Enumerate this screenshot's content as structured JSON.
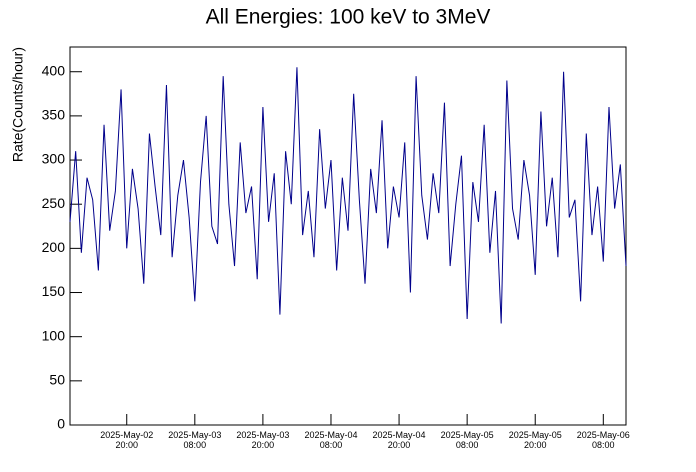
{
  "chart_data": {
    "type": "line",
    "title": "All Energies:  100 keV to 3MeV",
    "y_label": "Rate(Counts/hour)",
    "x": [
      "2025-05-02T10:00",
      "2025-05-02T11:00",
      "2025-05-02T12:00",
      "2025-05-02T13:00",
      "2025-05-02T14:00",
      "2025-05-02T15:00",
      "2025-05-02T16:00",
      "2025-05-02T17:00",
      "2025-05-02T18:00",
      "2025-05-02T19:00",
      "2025-05-02T20:00",
      "2025-05-02T21:00",
      "2025-05-02T22:00",
      "2025-05-02T23:00",
      "2025-05-03T00:00",
      "2025-05-03T01:00",
      "2025-05-03T02:00",
      "2025-05-03T03:00",
      "2025-05-03T04:00",
      "2025-05-03T05:00",
      "2025-05-03T06:00",
      "2025-05-03T07:00",
      "2025-05-03T08:00",
      "2025-05-03T09:00",
      "2025-05-03T10:00",
      "2025-05-03T11:00",
      "2025-05-03T12:00",
      "2025-05-03T13:00",
      "2025-05-03T14:00",
      "2025-05-03T15:00",
      "2025-05-03T16:00",
      "2025-05-03T17:00",
      "2025-05-03T18:00",
      "2025-05-03T19:00",
      "2025-05-03T20:00",
      "2025-05-03T21:00",
      "2025-05-03T22:00",
      "2025-05-03T23:00",
      "2025-05-04T00:00",
      "2025-05-04T01:00",
      "2025-05-04T02:00",
      "2025-05-04T03:00",
      "2025-05-04T04:00",
      "2025-05-04T05:00",
      "2025-05-04T06:00",
      "2025-05-04T07:00",
      "2025-05-04T08:00",
      "2025-05-04T09:00",
      "2025-05-04T10:00",
      "2025-05-04T11:00",
      "2025-05-04T12:00",
      "2025-05-04T13:00",
      "2025-05-04T14:00",
      "2025-05-04T15:00",
      "2025-05-04T16:00",
      "2025-05-04T17:00",
      "2025-05-04T18:00",
      "2025-05-04T19:00",
      "2025-05-04T20:00",
      "2025-05-04T21:00",
      "2025-05-04T22:00",
      "2025-05-04T23:00",
      "2025-05-05T00:00",
      "2025-05-05T01:00",
      "2025-05-05T02:00",
      "2025-05-05T03:00",
      "2025-05-05T04:00",
      "2025-05-05T05:00",
      "2025-05-05T06:00",
      "2025-05-05T07:00",
      "2025-05-05T08:00",
      "2025-05-05T09:00",
      "2025-05-05T10:00",
      "2025-05-05T11:00",
      "2025-05-05T12:00",
      "2025-05-05T13:00",
      "2025-05-05T14:00",
      "2025-05-05T15:00",
      "2025-05-05T16:00",
      "2025-05-05T17:00",
      "2025-05-05T18:00",
      "2025-05-05T19:00",
      "2025-05-05T20:00",
      "2025-05-05T21:00",
      "2025-05-05T22:00",
      "2025-05-05T23:00",
      "2025-05-06T00:00",
      "2025-05-06T01:00",
      "2025-05-06T02:00",
      "2025-05-06T03:00",
      "2025-05-06T04:00",
      "2025-05-06T05:00",
      "2025-05-06T06:00",
      "2025-05-06T07:00",
      "2025-05-06T08:00",
      "2025-05-06T09:00",
      "2025-05-06T10:00",
      "2025-05-06T11:00",
      "2025-05-06T12:00"
    ],
    "series": [
      {
        "color": "#00008b",
        "values": [
          230,
          310,
          195,
          280,
          255,
          175,
          340,
          220,
          265,
          380,
          200,
          290,
          245,
          160,
          330,
          270,
          215,
          385,
          190,
          260,
          300,
          235,
          140,
          275,
          350,
          225,
          205,
          395,
          250,
          180,
          320,
          240,
          270,
          165,
          360,
          230,
          285,
          125,
          310,
          250,
          405,
          215,
          265,
          190,
          335,
          245,
          300,
          175,
          280,
          220,
          375,
          255,
          160,
          290,
          240,
          345,
          200,
          270,
          235,
          320,
          150,
          395,
          260,
          210,
          285,
          240,
          365,
          180,
          250,
          305,
          120,
          275,
          230,
          340,
          195,
          265,
          115,
          390,
          245,
          210,
          300,
          260,
          170,
          355,
          225,
          280,
          190,
          400,
          235,
          255,
          140,
          330,
          215,
          270,
          185,
          360,
          245,
          295,
          180
        ]
      }
    ],
    "xlim": [
      "2025-05-02T10:00",
      "2025-05-06T12:00"
    ],
    "xticks": [
      {
        "value": "2025-05-02T20:00",
        "label": "2025-May-02\n20:00"
      },
      {
        "value": "2025-05-03T08:00",
        "label": "2025-May-03\n08:00"
      },
      {
        "value": "2025-05-03T20:00",
        "label": "2025-May-03\n20:00"
      },
      {
        "value": "2025-05-04T08:00",
        "label": "2025-May-04\n08:00"
      },
      {
        "value": "2025-05-04T20:00",
        "label": "2025-May-04\n20:00"
      },
      {
        "value": "2025-05-05T08:00",
        "label": "2025-May-05\n08:00"
      },
      {
        "value": "2025-05-05T20:00",
        "label": "2025-May-05\n20:00"
      },
      {
        "value": "2025-05-06T08:00",
        "label": "2025-May-06\n08:00"
      }
    ],
    "ylim": [
      0,
      428
    ],
    "yticks": [
      0,
      50,
      100,
      150,
      200,
      250,
      300,
      350,
      400
    ]
  }
}
